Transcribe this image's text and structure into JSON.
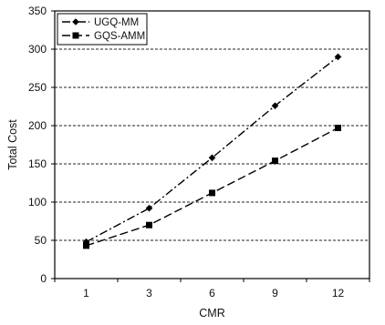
{
  "chart_data": {
    "type": "line",
    "title": "",
    "xlabel": "CMR",
    "ylabel": "Total Cost",
    "categories": [
      "1",
      "3",
      "6",
      "9",
      "12"
    ],
    "ylim": [
      0,
      350
    ],
    "yticks": [
      0,
      50,
      100,
      150,
      200,
      250,
      300,
      350
    ],
    "grid": true,
    "legend_position": "top-left",
    "series": [
      {
        "name": "UGQ-MM",
        "marker": "diamond",
        "line_style": "dash-dot",
        "values": [
          48,
          92,
          158,
          226,
          290
        ]
      },
      {
        "name": "GQS-AMM",
        "marker": "square",
        "line_style": "dashed",
        "values": [
          43,
          70,
          112,
          154,
          197
        ]
      }
    ]
  }
}
